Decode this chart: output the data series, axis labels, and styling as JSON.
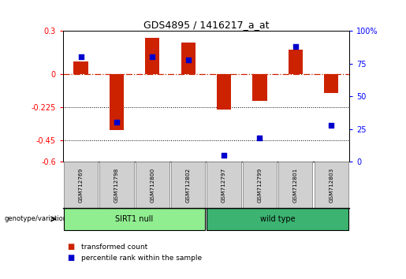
{
  "title": "GDS4895 / 1416217_a_at",
  "samples": [
    "GSM712769",
    "GSM712798",
    "GSM712800",
    "GSM712802",
    "GSM712797",
    "GSM712799",
    "GSM712801",
    "GSM712803"
  ],
  "transformed_count": [
    0.09,
    -0.38,
    0.25,
    0.22,
    -0.24,
    -0.18,
    0.17,
    -0.13
  ],
  "percentile_rank": [
    80,
    30,
    80,
    78,
    5,
    18,
    88,
    28
  ],
  "ylim_left": [
    -0.6,
    0.3
  ],
  "ylim_right": [
    0,
    100
  ],
  "yticks_left": [
    -0.6,
    -0.45,
    -0.225,
    0.0,
    0.3
  ],
  "yticks_right": [
    0,
    25,
    50,
    75,
    100
  ],
  "ytick_labels_left": [
    "-0.6",
    "-0.45",
    "-0.225",
    "0",
    "0.3"
  ],
  "ytick_labels_right": [
    "0",
    "25",
    "50",
    "75",
    "100%"
  ],
  "hlines": [
    -0.225,
    -0.45
  ],
  "groups": [
    {
      "label": "SIRT1 null",
      "start": 0,
      "end": 4,
      "color": "#90EE90"
    },
    {
      "label": "wild type",
      "start": 4,
      "end": 8,
      "color": "#3CB371"
    }
  ],
  "bar_color_red": "#CC2200",
  "dot_color_blue": "#0000CC",
  "bar_width": 0.4,
  "dot_size": 18,
  "legend_items": [
    {
      "color": "#CC2200",
      "label": "transformed count"
    },
    {
      "color": "#0000CC",
      "label": "percentile rank within the sample"
    }
  ],
  "group_label": "genotype/variation",
  "background_color": "#ffffff"
}
